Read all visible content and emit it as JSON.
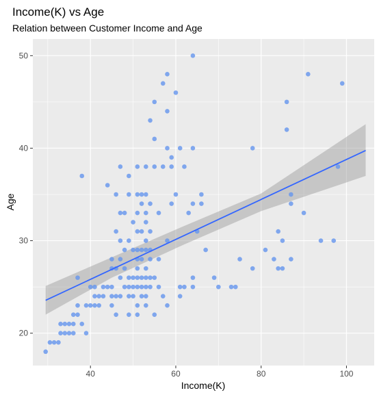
{
  "chart_data": {
    "type": "scatter",
    "title": "Income(K) vs Age",
    "subtitle": "Relation between Customer Income and Age",
    "xlabel": "Income(K)",
    "ylabel": "Age",
    "xlim": [
      26.5,
      106.5
    ],
    "ylim": [
      16.5,
      51.8
    ],
    "xticks": [
      40,
      60,
      80,
      100
    ],
    "yticks": [
      20,
      30,
      40,
      50
    ],
    "grid": true,
    "point_color": "#6495ED",
    "line_color": "#3366FF",
    "band_color": "#999999",
    "panel_color": "#EBEBEB",
    "points": [
      [
        29.5,
        18
      ],
      [
        30.5,
        19
      ],
      [
        31.5,
        19
      ],
      [
        32.5,
        19
      ],
      [
        33,
        20
      ],
      [
        33,
        21
      ],
      [
        34,
        21
      ],
      [
        34,
        20
      ],
      [
        35,
        20
      ],
      [
        35,
        21
      ],
      [
        36,
        21
      ],
      [
        36,
        22
      ],
      [
        36,
        20
      ],
      [
        37,
        22
      ],
      [
        37,
        23
      ],
      [
        37,
        26
      ],
      [
        38,
        21
      ],
      [
        38,
        37
      ],
      [
        39,
        20
      ],
      [
        39,
        23
      ],
      [
        40,
        23
      ],
      [
        40,
        25
      ],
      [
        41,
        23
      ],
      [
        41,
        24
      ],
      [
        41,
        25
      ],
      [
        42,
        23
      ],
      [
        42,
        24
      ],
      [
        43,
        24
      ],
      [
        43,
        25
      ],
      [
        44,
        25
      ],
      [
        44,
        36
      ],
      [
        45,
        23
      ],
      [
        45,
        24
      ],
      [
        45,
        25
      ],
      [
        45,
        27
      ],
      [
        45,
        28
      ],
      [
        46,
        22
      ],
      [
        46,
        24
      ],
      [
        46,
        27
      ],
      [
        46,
        31
      ],
      [
        46,
        35
      ],
      [
        47,
        24
      ],
      [
        47,
        26
      ],
      [
        47,
        28
      ],
      [
        47,
        30
      ],
      [
        47,
        33
      ],
      [
        47,
        38
      ],
      [
        48,
        25
      ],
      [
        48,
        27
      ],
      [
        48,
        29
      ],
      [
        48,
        33
      ],
      [
        49,
        22
      ],
      [
        49,
        24
      ],
      [
        49,
        25
      ],
      [
        49,
        26
      ],
      [
        49,
        30
      ],
      [
        49,
        35
      ],
      [
        49,
        37
      ],
      [
        50,
        24
      ],
      [
        50,
        25
      ],
      [
        50,
        26
      ],
      [
        50,
        29
      ],
      [
        50,
        32
      ],
      [
        51,
        22
      ],
      [
        51,
        23
      ],
      [
        51,
        25
      ],
      [
        51,
        26
      ],
      [
        51,
        27
      ],
      [
        51,
        28
      ],
      [
        51,
        29
      ],
      [
        51,
        31
      ],
      [
        51,
        33
      ],
      [
        51,
        35
      ],
      [
        51,
        38
      ],
      [
        52,
        24
      ],
      [
        52,
        25
      ],
      [
        52,
        26
      ],
      [
        52,
        28
      ],
      [
        52,
        29
      ],
      [
        52,
        31
      ],
      [
        52,
        34
      ],
      [
        52,
        35
      ],
      [
        53,
        23
      ],
      [
        53,
        24
      ],
      [
        53,
        25
      ],
      [
        53,
        26
      ],
      [
        53,
        27
      ],
      [
        53,
        29
      ],
      [
        53,
        30
      ],
      [
        53,
        32
      ],
      [
        53,
        33
      ],
      [
        53,
        35
      ],
      [
        53,
        38
      ],
      [
        54,
        25
      ],
      [
        54,
        26
      ],
      [
        54,
        28
      ],
      [
        54,
        29
      ],
      [
        54,
        31
      ],
      [
        54,
        34
      ],
      [
        54,
        43
      ],
      [
        55,
        22
      ],
      [
        55,
        26
      ],
      [
        55,
        38
      ],
      [
        55,
        41
      ],
      [
        55,
        45
      ],
      [
        56,
        33
      ],
      [
        56,
        25
      ],
      [
        56,
        28
      ],
      [
        57,
        24
      ],
      [
        57,
        38
      ],
      [
        57,
        47
      ],
      [
        58,
        23
      ],
      [
        58,
        30
      ],
      [
        58,
        40
      ],
      [
        58,
        44
      ],
      [
        58,
        48
      ],
      [
        59,
        34
      ],
      [
        59,
        38
      ],
      [
        59,
        39
      ],
      [
        60,
        35
      ],
      [
        60,
        46
      ],
      [
        61,
        24
      ],
      [
        61,
        25
      ],
      [
        61,
        40
      ],
      [
        62,
        25
      ],
      [
        62,
        38
      ],
      [
        63,
        33
      ],
      [
        64,
        26
      ],
      [
        64,
        25
      ],
      [
        64,
        34
      ],
      [
        64,
        40
      ],
      [
        64,
        50
      ],
      [
        65,
        31
      ],
      [
        66,
        34
      ],
      [
        66,
        35
      ],
      [
        67,
        29
      ],
      [
        69,
        26
      ],
      [
        70,
        25
      ],
      [
        73,
        25
      ],
      [
        74,
        25
      ],
      [
        75,
        28
      ],
      [
        78,
        27
      ],
      [
        78,
        40
      ],
      [
        81,
        29
      ],
      [
        83,
        28
      ],
      [
        84,
        27
      ],
      [
        84,
        31
      ],
      [
        85,
        30
      ],
      [
        85,
        27
      ],
      [
        86,
        42
      ],
      [
        86,
        45
      ],
      [
        87,
        28
      ],
      [
        87,
        35
      ],
      [
        87,
        34
      ],
      [
        90,
        33
      ],
      [
        91,
        48
      ],
      [
        94,
        30
      ],
      [
        97,
        30
      ],
      [
        98,
        38
      ],
      [
        99,
        47
      ]
    ],
    "regression": {
      "x": [
        29.5,
        104.5
      ],
      "y_start": 23.55,
      "y_end": 39.75
    },
    "band": {
      "x": [
        29.5,
        45,
        62,
        80,
        104.5
      ],
      "upper": [
        25.1,
        28.2,
        31.6,
        35.1,
        42.6
      ],
      "lower": [
        22.0,
        26.0,
        29.6,
        33.2,
        37.0
      ]
    }
  }
}
